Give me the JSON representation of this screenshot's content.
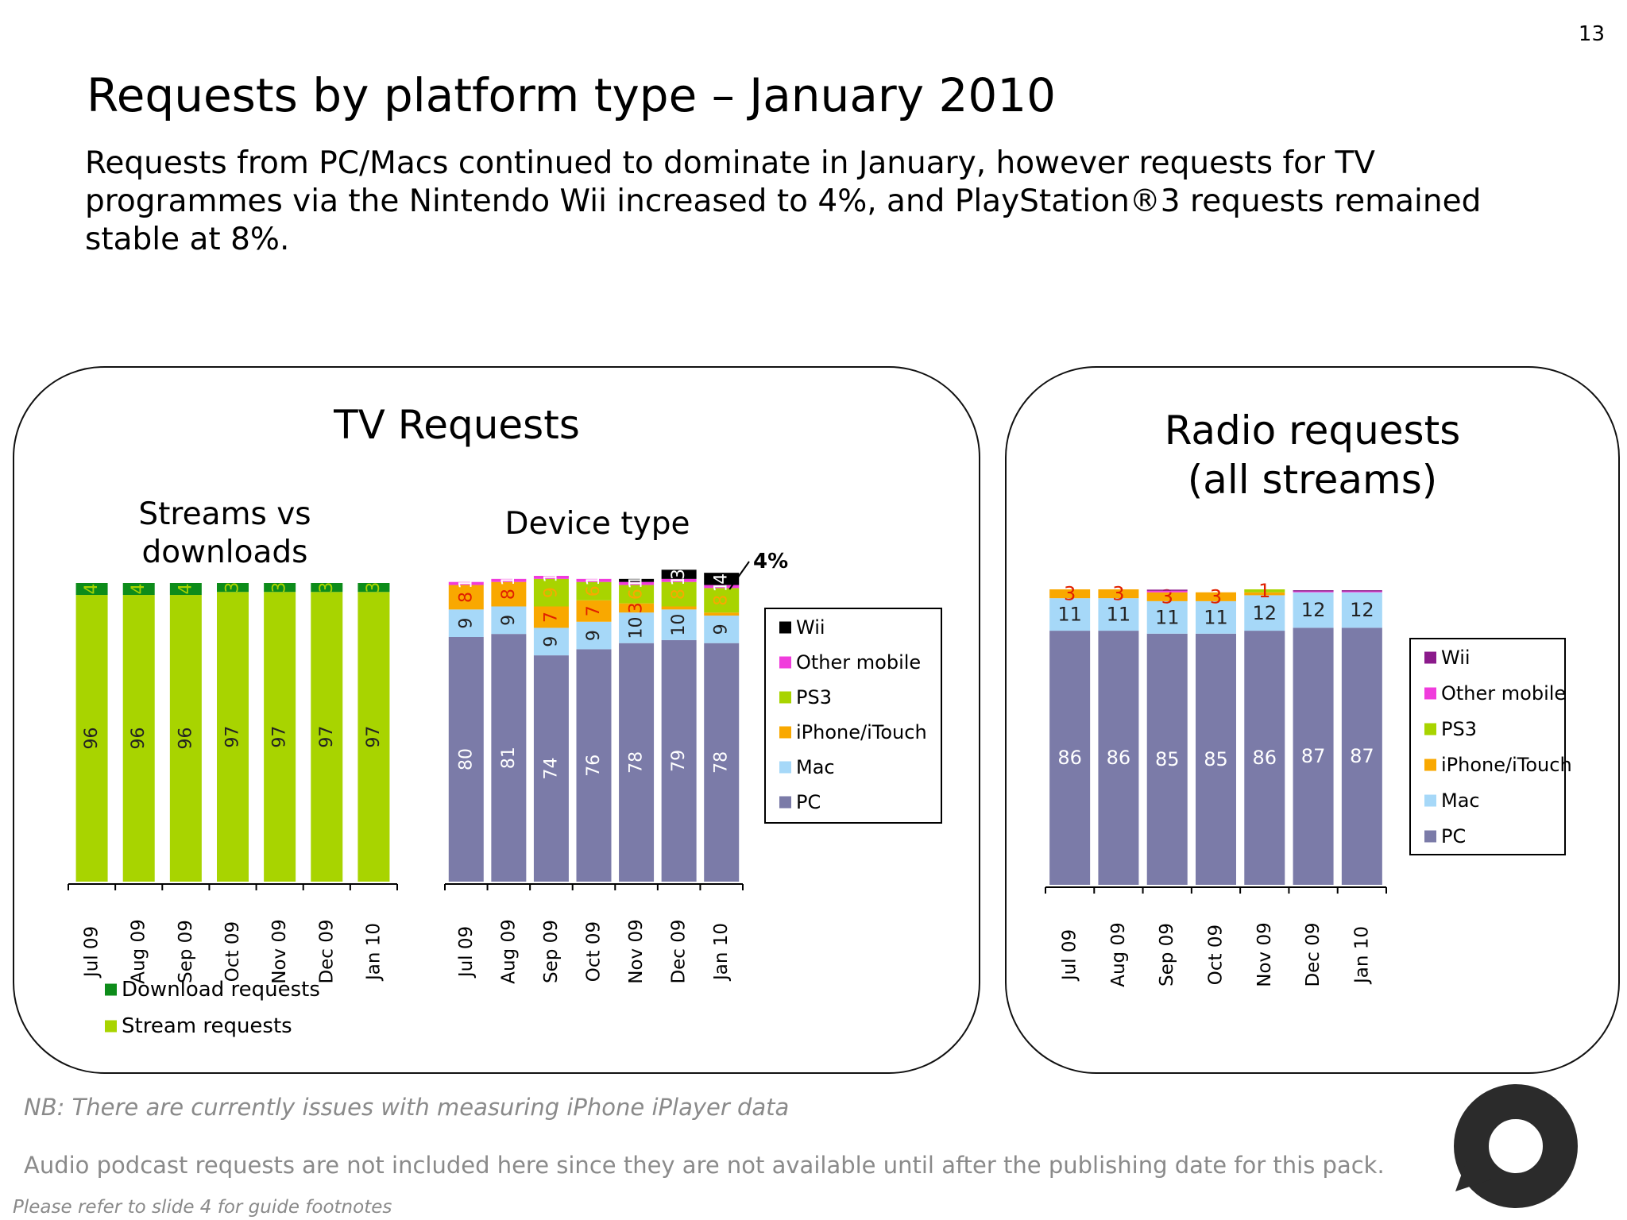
{
  "page_number": "13",
  "title": "Requests by platform type – January 2010",
  "subtitle": "Requests from PC/Macs continued to dominate in January, however requests for TV programmes via the Nintendo Wii increased to 4%, and PlayStation®3 requests remained stable at 8%.",
  "tv_panel": {
    "heading": "TV Requests"
  },
  "notes": {
    "iphone_note": "NB: There are currently issues with measuring iPhone iPlayer data",
    "podcast_note": "Audio podcast requests are not included here since they are not available until after the publishing date for this pack.",
    "footnote": "Please refer to slide 4 for guide footnotes"
  },
  "logo": "speech-bubble-logo",
  "colors": {
    "download": "#0d8c1a",
    "stream": "#a8d400",
    "wii": "#000000",
    "wii_radio": "#8b1a8b",
    "other_mobile": "#f03cdc",
    "ps3": "#a8d400",
    "iphone": "#f9a800",
    "mac": "#a6d8f8",
    "pc": "#7b7ba8"
  },
  "chart_data": [
    {
      "id": "streams",
      "type": "bar",
      "stacked": true,
      "title_lines": [
        "Streams vs",
        "downloads"
      ],
      "categories": [
        "Jul 09",
        "Aug 09",
        "Sep 09",
        "Oct 09",
        "Nov 09",
        "Dec 09",
        "Jan 10"
      ],
      "series": [
        {
          "name": "Stream requests",
          "values": [
            96,
            96,
            96,
            97,
            97,
            97,
            97
          ],
          "color": "#a8d400"
        },
        {
          "name": "Download requests",
          "values": [
            4,
            4,
            4,
            3,
            3,
            3,
            3
          ],
          "color": "#0d8c1a"
        }
      ],
      "legend": [
        {
          "label": "Download requests",
          "color": "#0d8c1a"
        },
        {
          "label": "Stream requests",
          "color": "#a8d400"
        }
      ],
      "ylim": [
        0,
        100
      ],
      "legend_position": "bottom"
    },
    {
      "id": "device",
      "type": "bar",
      "stacked": true,
      "title_lines": [
        "Device type"
      ],
      "callout": "4%",
      "categories": [
        "Jul 09",
        "Aug 09",
        "Sep 09",
        "Oct 09",
        "Nov 09",
        "Dec 09",
        "Jan 10"
      ],
      "series": [
        {
          "name": "PC",
          "values": [
            80,
            81,
            74,
            76,
            78,
            79,
            78
          ],
          "color": "#7b7ba8"
        },
        {
          "name": "Mac",
          "values": [
            9,
            9,
            9,
            9,
            10,
            10,
            9
          ],
          "color": "#a6d8f8"
        },
        {
          "name": "iPhone/iTouch",
          "values": [
            8,
            8,
            7,
            7,
            3,
            1,
            1
          ],
          "color": "#f9a800",
          "labels": [
            "8",
            "8",
            "7",
            "7",
            "3",
            "",
            ""
          ]
        },
        {
          "name": "PS3",
          "values": [
            0,
            0,
            9,
            6,
            6,
            8,
            8
          ],
          "color": "#a8d400",
          "labels": [
            "",
            "",
            "9",
            "6",
            "6",
            "8",
            "8"
          ]
        },
        {
          "name": "Other mobile",
          "values": [
            1,
            1,
            1,
            1,
            1,
            1,
            1
          ],
          "color": "#f03cdc"
        },
        {
          "name": "Wii",
          "values": [
            0,
            0,
            0,
            0,
            1,
            3,
            4
          ],
          "color": "#000000"
        }
      ],
      "legend": [
        {
          "label": "Wii",
          "color": "#000000"
        },
        {
          "label": "Other mobile",
          "color": "#f03cdc"
        },
        {
          "label": "PS3",
          "color": "#a8d400"
        },
        {
          "label": "iPhone/iTouch",
          "color": "#f9a800"
        },
        {
          "label": "Mac",
          "color": "#a6d8f8"
        },
        {
          "label": "PC",
          "color": "#7b7ba8"
        }
      ],
      "ylim": [
        0,
        100
      ],
      "legend_position": "right"
    },
    {
      "id": "radio",
      "type": "bar",
      "stacked": true,
      "title_lines": [
        "Radio requests",
        "(all streams)"
      ],
      "categories": [
        "Jul 09",
        "Aug 09",
        "Sep 09",
        "Oct 09",
        "Nov 09",
        "Dec 09",
        "Jan 10"
      ],
      "series": [
        {
          "name": "PC",
          "values": [
            86,
            86,
            85,
            85,
            86,
            87,
            87
          ],
          "color": "#7b7ba8"
        },
        {
          "name": "Mac",
          "values": [
            11,
            11,
            11,
            11,
            12,
            12,
            12
          ],
          "color": "#a6d8f8"
        },
        {
          "name": "iPhone/iTouch",
          "values": [
            3,
            3,
            3,
            3,
            1,
            0,
            0
          ],
          "color": "#f9a800",
          "labels": [
            "3",
            "3",
            "3",
            "3",
            "",
            "",
            ""
          ]
        },
        {
          "name": "PS3",
          "values": [
            0,
            0,
            0,
            0,
            1,
            0,
            0
          ],
          "color": "#a8d400",
          "labels": [
            "",
            "",
            "",
            "",
            "1",
            "",
            ""
          ]
        },
        {
          "name": "Other mobile",
          "values": [
            0,
            0,
            0.5,
            0,
            0,
            0.3,
            0.3
          ],
          "color": "#f03cdc"
        },
        {
          "name": "Wii",
          "values": [
            0,
            0,
            0.4,
            0,
            0,
            0.4,
            0.4
          ],
          "color": "#8b1a8b"
        }
      ],
      "legend": [
        {
          "label": "Wii",
          "color": "#8b1a8b"
        },
        {
          "label": "Other mobile",
          "color": "#f03cdc"
        },
        {
          "label": "PS3",
          "color": "#a8d400"
        },
        {
          "label": "iPhone/iTouch",
          "color": "#f9a800"
        },
        {
          "label": "Mac",
          "color": "#a6d8f8"
        },
        {
          "label": "PC",
          "color": "#7b7ba8"
        }
      ],
      "ylim": [
        0,
        100
      ],
      "legend_position": "right"
    }
  ]
}
